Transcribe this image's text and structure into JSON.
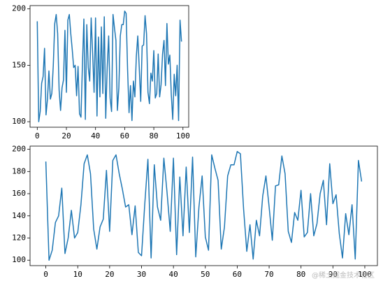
{
  "chart_data": [
    {
      "type": "line",
      "xlim": [
        -4.95,
        103.95
      ],
      "ylim": [
        95.1,
        202.9
      ],
      "xticks": [
        0,
        20,
        40,
        60,
        80,
        100
      ],
      "yticks": [
        100,
        150,
        200
      ],
      "series": [
        {
          "color": "#1f77b4",
          "x": [
            0,
            1,
            2,
            3,
            4,
            5,
            6,
            7,
            8,
            9,
            10,
            11,
            12,
            13,
            14,
            15,
            16,
            17,
            18,
            19,
            20,
            21,
            22,
            23,
            24,
            25,
            26,
            27,
            28,
            29,
            30,
            31,
            32,
            33,
            34,
            35,
            36,
            37,
            38,
            39,
            40,
            41,
            42,
            43,
            44,
            45,
            46,
            47,
            48,
            49,
            50,
            51,
            52,
            53,
            54,
            55,
            56,
            57,
            58,
            59,
            60,
            61,
            62,
            63,
            64,
            65,
            66,
            67,
            68,
            69,
            70,
            71,
            72,
            73,
            74,
            75,
            76,
            77,
            78,
            79,
            80,
            81,
            82,
            83,
            84,
            85,
            86,
            87,
            88,
            89,
            90,
            91,
            92,
            93,
            94,
            95,
            96,
            97,
            98,
            99
          ],
          "values": [
            189,
            100,
            109,
            134,
            140,
            165,
            106,
            120,
            145,
            120,
            125,
            150,
            187,
            195,
            178,
            128,
            110,
            130,
            137,
            181,
            126,
            190,
            195,
            178,
            164,
            148,
            150,
            123,
            149,
            107,
            104,
            150,
            191,
            102,
            186,
            148,
            136,
            192,
            161,
            126,
            192,
            105,
            175,
            122,
            184,
            125,
            193,
            103,
            148,
            176,
            121,
            109,
            195,
            183,
            172,
            110,
            130,
            176,
            186,
            186,
            198,
            196,
            146,
            108,
            132,
            101,
            136,
            122,
            158,
            176,
            148,
            118,
            167,
            168,
            194,
            178,
            126,
            116,
            143,
            136,
            163,
            121,
            125,
            160,
            122,
            133,
            160,
            172,
            132,
            187,
            151,
            159,
            124,
            102,
            142,
            123,
            150,
            101,
            190,
            171
          ]
        }
      ]
    },
    {
      "type": "line",
      "xlim": [
        -4.95,
        103.95
      ],
      "ylim": [
        95.1,
        202.9
      ],
      "xticks": [
        0,
        10,
        20,
        30,
        40,
        50,
        60,
        70,
        80,
        90,
        100
      ],
      "yticks": [
        100,
        120,
        140,
        160,
        180,
        200
      ],
      "watermark": "@稀土掘金技术社区",
      "series": [
        {
          "color": "#1f77b4",
          "x": [
            0,
            1,
            2,
            3,
            4,
            5,
            6,
            7,
            8,
            9,
            10,
            11,
            12,
            13,
            14,
            15,
            16,
            17,
            18,
            19,
            20,
            21,
            22,
            23,
            24,
            25,
            26,
            27,
            28,
            29,
            30,
            31,
            32,
            33,
            34,
            35,
            36,
            37,
            38,
            39,
            40,
            41,
            42,
            43,
            44,
            45,
            46,
            47,
            48,
            49,
            50,
            51,
            52,
            53,
            54,
            55,
            56,
            57,
            58,
            59,
            60,
            61,
            62,
            63,
            64,
            65,
            66,
            67,
            68,
            69,
            70,
            71,
            72,
            73,
            74,
            75,
            76,
            77,
            78,
            79,
            80,
            81,
            82,
            83,
            84,
            85,
            86,
            87,
            88,
            89,
            90,
            91,
            92,
            93,
            94,
            95,
            96,
            97,
            98,
            99
          ],
          "values": [
            189,
            100,
            109,
            134,
            140,
            165,
            106,
            120,
            145,
            120,
            125,
            150,
            187,
            195,
            178,
            128,
            110,
            130,
            137,
            181,
            126,
            190,
            195,
            178,
            164,
            148,
            150,
            123,
            149,
            107,
            104,
            150,
            191,
            102,
            186,
            148,
            136,
            192,
            161,
            126,
            192,
            105,
            175,
            122,
            184,
            125,
            193,
            103,
            148,
            176,
            121,
            109,
            195,
            183,
            172,
            110,
            130,
            176,
            186,
            186,
            198,
            196,
            146,
            108,
            132,
            101,
            136,
            122,
            158,
            176,
            148,
            118,
            167,
            168,
            194,
            178,
            126,
            116,
            143,
            136,
            163,
            121,
            125,
            160,
            122,
            133,
            160,
            172,
            132,
            187,
            151,
            159,
            124,
            102,
            142,
            123,
            150,
            101,
            190,
            171
          ]
        }
      ]
    }
  ]
}
